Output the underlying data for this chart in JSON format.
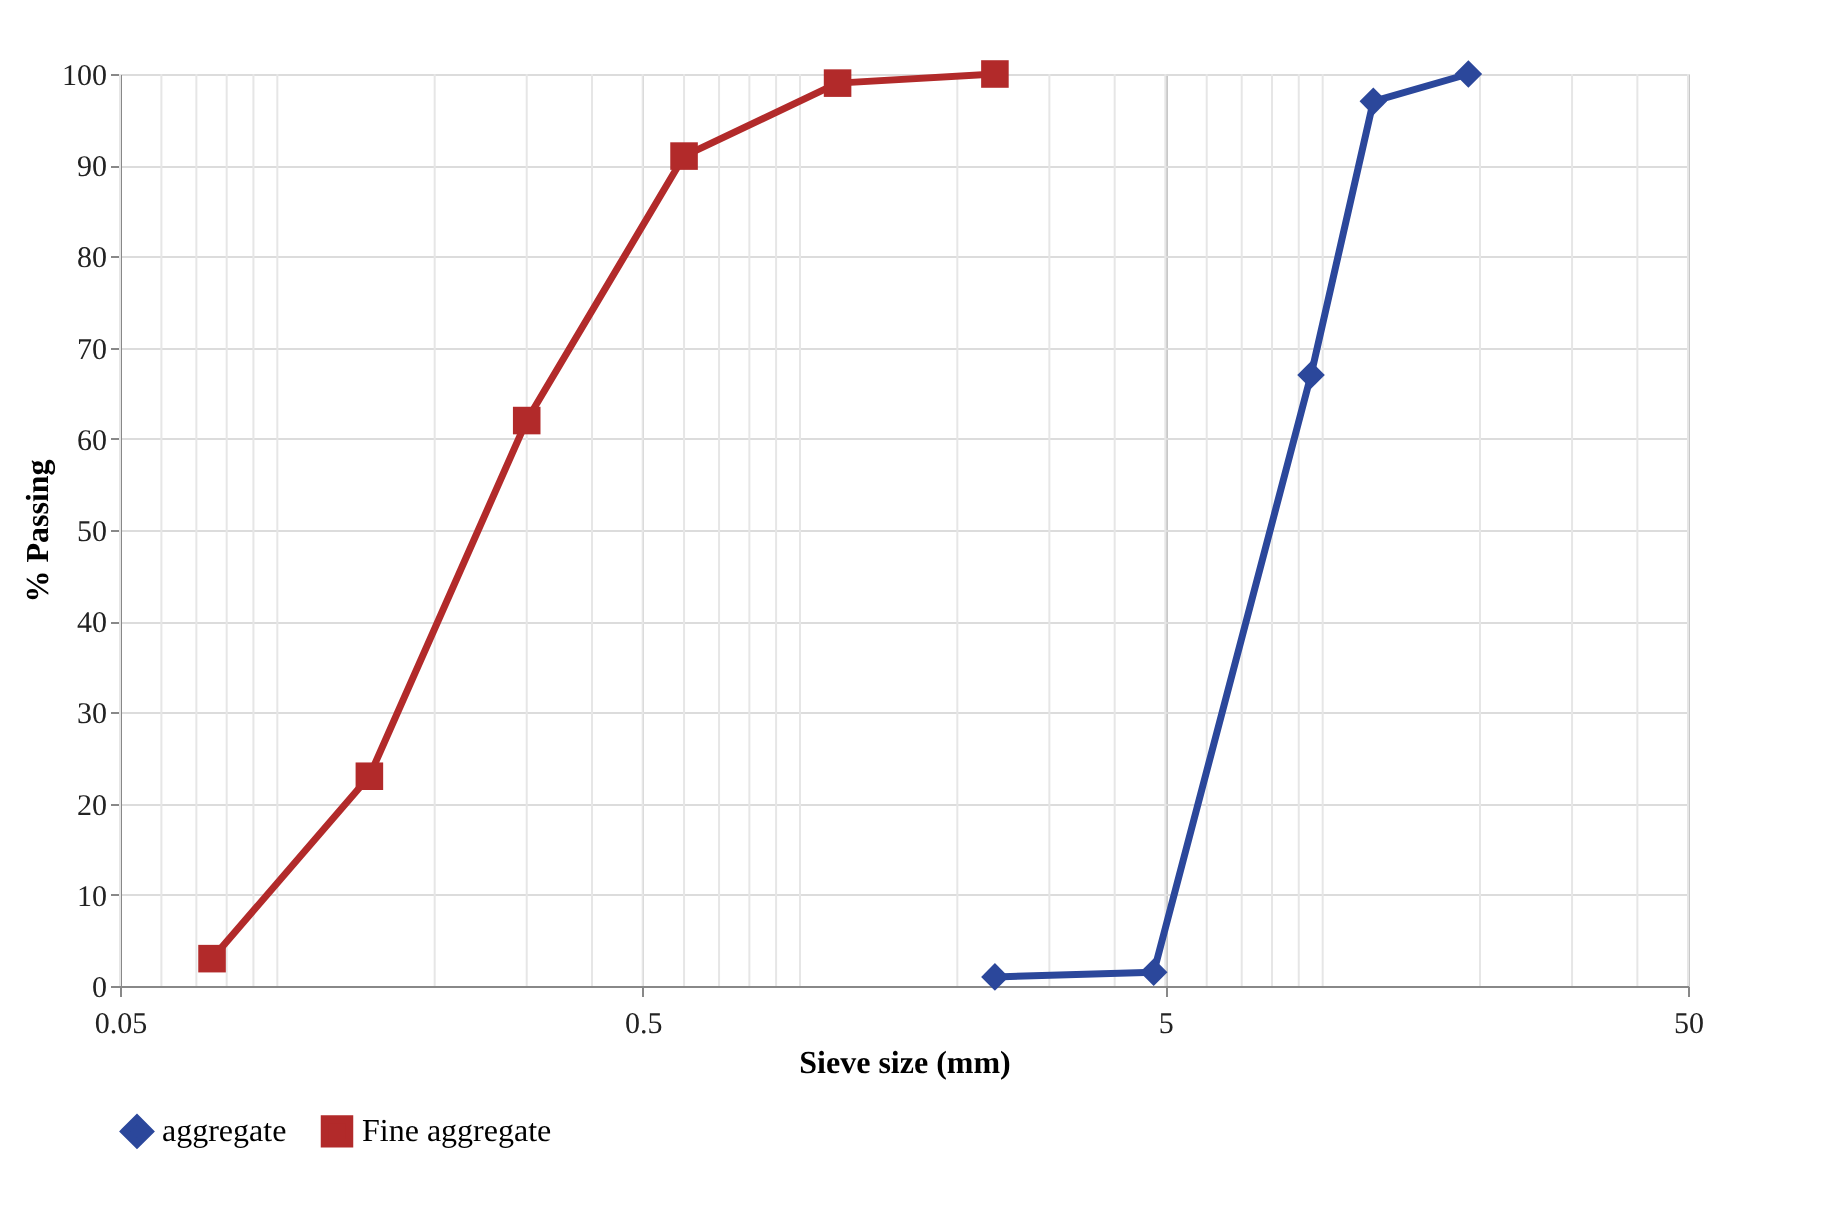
{
  "chart_data": {
    "type": "line",
    "xlabel": "Sieve size (mm)",
    "ylabel": "% Passing",
    "series": [
      {
        "name": "aggregate",
        "color": "#2b479b",
        "marker": "diamond",
        "x": [
          2.36,
          4.75,
          9.5,
          12.5,
          19
        ],
        "values": [
          1,
          1.5,
          67,
          97,
          100
        ]
      },
      {
        "name": "Fine aggregate",
        "color": "#b22a2a",
        "marker": "square",
        "x": [
          0.075,
          0.15,
          0.3,
          0.6,
          1.18,
          2.36
        ],
        "values": [
          3,
          23,
          62,
          91,
          99,
          100
        ]
      }
    ],
    "log": "x",
    "xlim": [
      0.05,
      50
    ],
    "xticks": [
      0.05,
      0.5,
      5,
      50
    ],
    "ylim": [
      0,
      100
    ],
    "yticks": [
      0,
      10,
      20,
      30,
      40,
      50,
      60,
      70,
      80,
      90,
      100
    ],
    "grid": true,
    "legend": "bottom",
    "line_style": "solid"
  }
}
